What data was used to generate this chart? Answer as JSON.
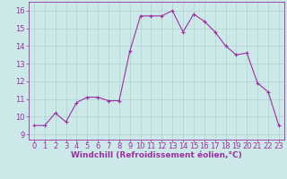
{
  "x": [
    0,
    1,
    2,
    3,
    4,
    5,
    6,
    7,
    8,
    9,
    10,
    11,
    12,
    13,
    14,
    15,
    16,
    17,
    18,
    19,
    20,
    21,
    22,
    23
  ],
  "y": [
    9.5,
    9.5,
    10.2,
    9.7,
    10.8,
    11.1,
    11.1,
    10.9,
    10.9,
    13.7,
    15.7,
    15.7,
    15.7,
    16.0,
    14.8,
    15.8,
    15.4,
    14.8,
    14.0,
    13.5,
    13.6,
    11.9,
    11.4,
    9.5
  ],
  "line_color": "#9b30a0",
  "marker": "+",
  "marker_size": 3,
  "bg_color": "#cce8e8",
  "grid_color": "#b0d0d0",
  "xlabel": "Windchill (Refroidissement éolien,°C)",
  "xlim": [
    -0.5,
    23.5
  ],
  "ylim": [
    8.7,
    16.5
  ],
  "yticks": [
    9,
    10,
    11,
    12,
    13,
    14,
    15,
    16
  ],
  "xticks": [
    0,
    1,
    2,
    3,
    4,
    5,
    6,
    7,
    8,
    9,
    10,
    11,
    12,
    13,
    14,
    15,
    16,
    17,
    18,
    19,
    20,
    21,
    22,
    23
  ],
  "tick_color": "#9b30a0",
  "label_color": "#9b30a0",
  "label_fontsize": 6.5,
  "tick_fontsize": 6.0
}
